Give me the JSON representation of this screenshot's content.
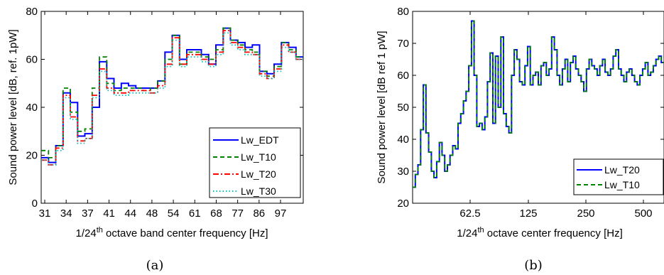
{
  "chart_data": [
    {
      "type": "line",
      "step": true,
      "panel_label": "(a)",
      "xlabel": "1/24th octave band center frequency [Hz]",
      "ylabel": "Sound power level [dB, ref. 1pW]",
      "ylim": [
        0,
        80
      ],
      "xticks": [
        "31",
        "34",
        "37",
        "41",
        "44",
        "48",
        "54",
        "61",
        "68",
        "77",
        "86",
        "97"
      ],
      "y_ticks": [
        0,
        20,
        40,
        60,
        80
      ],
      "legend": {
        "placement": "bottom-right"
      },
      "series": [
        {
          "name": "Lw_EDT",
          "color": "#0000ff",
          "dash": "solid",
          "values": [
            19,
            17,
            24,
            46,
            42,
            28,
            29,
            40,
            59,
            52,
            48,
            50,
            49,
            48,
            48,
            48,
            51,
            63,
            70,
            60,
            64,
            64,
            62,
            58,
            66,
            73,
            68,
            67,
            65,
            66,
            55,
            54,
            58,
            67,
            65,
            61
          ]
        },
        {
          "name": "Lw_T10",
          "color": "#008000",
          "dash": "dashed",
          "values": [
            22,
            19,
            24,
            48,
            38,
            30,
            31,
            48,
            61,
            50,
            47,
            48,
            48,
            48,
            47,
            48,
            51,
            60,
            70,
            58,
            63,
            63,
            61,
            60,
            64,
            73,
            68,
            66,
            64,
            63,
            55,
            53,
            57,
            67,
            64,
            61
          ]
        },
        {
          "name": "Lw_T20",
          "color": "#ff0000",
          "dash": "dashdot",
          "values": [
            18,
            16,
            23,
            45,
            36,
            26,
            27,
            45,
            56,
            48,
            46,
            46,
            47,
            47,
            47,
            46,
            49,
            58,
            69,
            58,
            62,
            62,
            60,
            58,
            63,
            72,
            67,
            65,
            63,
            62,
            54,
            52,
            56,
            66,
            63,
            60
          ]
        },
        {
          "name": "Lw_T30",
          "color": "#00bfbf",
          "dash": "dotted",
          "values": [
            18,
            16,
            22,
            44,
            35,
            25,
            27,
            44,
            55,
            47,
            45,
            45,
            46,
            46,
            46,
            46,
            48,
            57,
            68,
            57,
            61,
            61,
            59,
            57,
            62,
            71,
            66,
            64,
            62,
            62,
            53,
            52,
            55,
            65,
            63,
            60
          ]
        }
      ]
    },
    {
      "type": "line",
      "step": true,
      "panel_label": "(b)",
      "xlabel": "1/24th octave center frequency [Hz]",
      "ylabel": "Sound power level [dB ref 1 pW]",
      "ylim": [
        20,
        80
      ],
      "xticks": [
        "62.5",
        "125",
        "250",
        "500"
      ],
      "y_ticks": [
        20,
        30,
        40,
        50,
        60,
        70,
        80
      ],
      "legend": {
        "placement": "bottom-right"
      },
      "series": [
        {
          "name": "Lw_T20",
          "color": "#0000ff",
          "dash": "solid"
        },
        {
          "name": "Lw_T10",
          "color": "#008000",
          "dash": "dashed"
        }
      ],
      "values": [
        25,
        29,
        32,
        43,
        57,
        42,
        36,
        30,
        28,
        33,
        39,
        35,
        30,
        32,
        35,
        38,
        37,
        45,
        48,
        52,
        55,
        63,
        77,
        60,
        44,
        45,
        43,
        47,
        58,
        67,
        45,
        66,
        50,
        72,
        48,
        44,
        42,
        60,
        68,
        65,
        58,
        57,
        63,
        69,
        57,
        60,
        61,
        57,
        63,
        64,
        60,
        62,
        72,
        68,
        60,
        57,
        62,
        65,
        58,
        64,
        66,
        62,
        60,
        58,
        55,
        62,
        65,
        63,
        62,
        60,
        63,
        65,
        61,
        60,
        62,
        66,
        68,
        62,
        60,
        58,
        61,
        62,
        60,
        58,
        57,
        60,
        62,
        64,
        60,
        61,
        63,
        65,
        66,
        64
      ]
    }
  ]
}
